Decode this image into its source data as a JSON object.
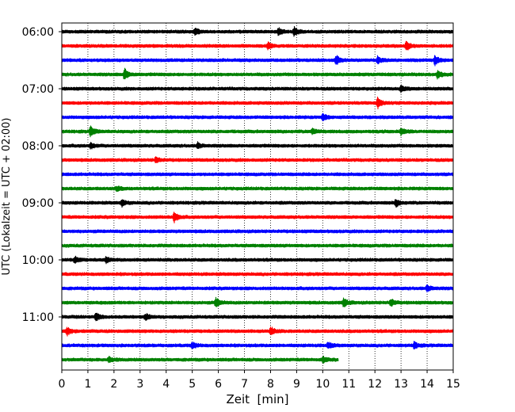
{
  "chart_data": {
    "type": "line",
    "title": "",
    "xlabel": "Zeit  [min]",
    "ylabel": "UTC (Lokalzeit = UTC + 02:00)",
    "xlim": [
      0,
      15
    ],
    "x_ticks": [
      "0",
      "1",
      "2",
      "3",
      "4",
      "5",
      "6",
      "7",
      "8",
      "9",
      "10",
      "11",
      "12",
      "13",
      "14",
      "15"
    ],
    "y_ticks": [
      "06:00",
      "07:00",
      "08:00",
      "09:00",
      "10:00",
      "11:00"
    ],
    "grid": "vertical dotted",
    "line_colors": [
      "#000000",
      "#ff0000",
      "#0000ff",
      "#008000"
    ],
    "rows": [
      {
        "start": "06:00",
        "end_min": 15,
        "color": "#000000"
      },
      {
        "start": "06:15",
        "end_min": 15,
        "color": "#ff0000"
      },
      {
        "start": "06:30",
        "end_min": 15,
        "color": "#0000ff"
      },
      {
        "start": "06:45",
        "end_min": 15,
        "color": "#008000"
      },
      {
        "start": "07:00",
        "end_min": 15,
        "color": "#000000"
      },
      {
        "start": "07:15",
        "end_min": 15,
        "color": "#ff0000"
      },
      {
        "start": "07:30",
        "end_min": 15,
        "color": "#0000ff"
      },
      {
        "start": "07:45",
        "end_min": 15,
        "color": "#008000"
      },
      {
        "start": "08:00",
        "end_min": 15,
        "color": "#000000"
      },
      {
        "start": "08:15",
        "end_min": 15,
        "color": "#ff0000"
      },
      {
        "start": "08:30",
        "end_min": 15,
        "color": "#0000ff"
      },
      {
        "start": "08:45",
        "end_min": 15,
        "color": "#008000"
      },
      {
        "start": "09:00",
        "end_min": 15,
        "color": "#000000"
      },
      {
        "start": "09:15",
        "end_min": 15,
        "color": "#ff0000"
      },
      {
        "start": "09:30",
        "end_min": 15,
        "color": "#0000ff"
      },
      {
        "start": "09:45",
        "end_min": 15,
        "color": "#008000"
      },
      {
        "start": "10:00",
        "end_min": 15,
        "color": "#000000"
      },
      {
        "start": "10:15",
        "end_min": 15,
        "color": "#ff0000"
      },
      {
        "start": "10:30",
        "end_min": 15,
        "color": "#0000ff"
      },
      {
        "start": "10:45",
        "end_min": 15,
        "color": "#008000"
      },
      {
        "start": "11:00",
        "end_min": 15,
        "color": "#000000"
      },
      {
        "start": "11:15",
        "end_min": 15,
        "color": "#ff0000"
      },
      {
        "start": "11:30",
        "end_min": 15,
        "color": "#0000ff"
      },
      {
        "start": "11:45",
        "end_min": 10.6,
        "color": "#008000"
      }
    ],
    "events": [
      {
        "row": 0,
        "min": 5.1,
        "amp": 0.8
      },
      {
        "row": 0,
        "min": 8.3,
        "amp": 0.8
      },
      {
        "row": 0,
        "min": 8.9,
        "amp": 1.0
      },
      {
        "row": 1,
        "min": 7.9,
        "amp": 0.7
      },
      {
        "row": 1,
        "min": 13.2,
        "amp": 1.0
      },
      {
        "row": 2,
        "min": 10.5,
        "amp": 1.1
      },
      {
        "row": 2,
        "min": 12.1,
        "amp": 0.8
      },
      {
        "row": 2,
        "min": 14.3,
        "amp": 1.0
      },
      {
        "row": 3,
        "min": 2.4,
        "amp": 1.3
      },
      {
        "row": 3,
        "min": 14.4,
        "amp": 0.9
      },
      {
        "row": 4,
        "min": 13.0,
        "amp": 0.7
      },
      {
        "row": 5,
        "min": 12.1,
        "amp": 1.2
      },
      {
        "row": 6,
        "min": 10.0,
        "amp": 0.8
      },
      {
        "row": 7,
        "min": 1.1,
        "amp": 1.1
      },
      {
        "row": 7,
        "min": 9.6,
        "amp": 0.7
      },
      {
        "row": 7,
        "min": 13.0,
        "amp": 0.7
      },
      {
        "row": 8,
        "min": 1.1,
        "amp": 0.6
      },
      {
        "row": 8,
        "min": 5.2,
        "amp": 0.6
      },
      {
        "row": 9,
        "min": 3.6,
        "amp": 0.6
      },
      {
        "row": 11,
        "min": 2.1,
        "amp": 0.5
      },
      {
        "row": 12,
        "min": 2.3,
        "amp": 0.7
      },
      {
        "row": 12,
        "min": 12.8,
        "amp": 0.8
      },
      {
        "row": 13,
        "min": 4.3,
        "amp": 1.1
      },
      {
        "row": 16,
        "min": 0.5,
        "amp": 0.7
      },
      {
        "row": 16,
        "min": 1.7,
        "amp": 0.6
      },
      {
        "row": 18,
        "min": 14.0,
        "amp": 0.7
      },
      {
        "row": 19,
        "min": 5.9,
        "amp": 1.1
      },
      {
        "row": 19,
        "min": 10.8,
        "amp": 1.0
      },
      {
        "row": 19,
        "min": 12.6,
        "amp": 0.8
      },
      {
        "row": 20,
        "min": 1.3,
        "amp": 0.9
      },
      {
        "row": 20,
        "min": 3.2,
        "amp": 0.7
      },
      {
        "row": 21,
        "min": 0.2,
        "amp": 0.9
      },
      {
        "row": 21,
        "min": 8.0,
        "amp": 0.9
      },
      {
        "row": 22,
        "min": 5.0,
        "amp": 0.7
      },
      {
        "row": 22,
        "min": 10.2,
        "amp": 0.7
      },
      {
        "row": 22,
        "min": 13.5,
        "amp": 0.7
      },
      {
        "row": 23,
        "min": 1.8,
        "amp": 0.6
      },
      {
        "row": 23,
        "min": 10.0,
        "amp": 0.6
      }
    ]
  }
}
